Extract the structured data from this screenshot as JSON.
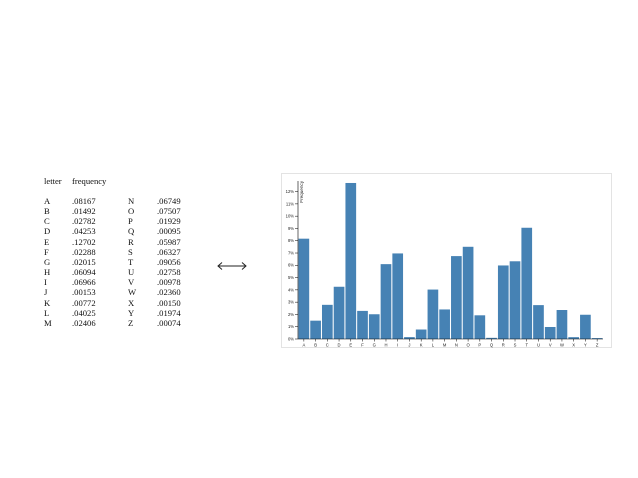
{
  "table": {
    "header_letter": "letter",
    "header_frequency": "frequency",
    "left_column": [
      {
        "letter": "A",
        "frequency": ".08167"
      },
      {
        "letter": "B",
        "frequency": ".01492"
      },
      {
        "letter": "C",
        "frequency": ".02782"
      },
      {
        "letter": "D",
        "frequency": ".04253"
      },
      {
        "letter": "E",
        "frequency": ".12702"
      },
      {
        "letter": "F",
        "frequency": ".02288"
      },
      {
        "letter": "G",
        "frequency": ".02015"
      },
      {
        "letter": "H",
        "frequency": ".06094"
      },
      {
        "letter": "I",
        "frequency": ".06966"
      },
      {
        "letter": "J",
        "frequency": ".00153"
      },
      {
        "letter": "K",
        "frequency": ".00772"
      },
      {
        "letter": "L",
        "frequency": ".04025"
      },
      {
        "letter": "M",
        "frequency": ".02406"
      }
    ],
    "right_column": [
      {
        "letter": "N",
        "frequency": ".06749"
      },
      {
        "letter": "O",
        "frequency": ".07507"
      },
      {
        "letter": "P",
        "frequency": ".01929"
      },
      {
        "letter": "Q",
        "frequency": ".00095"
      },
      {
        "letter": "R",
        "frequency": ".05987"
      },
      {
        "letter": "S",
        "frequency": ".06327"
      },
      {
        "letter": "T",
        "frequency": ".09056"
      },
      {
        "letter": "U",
        "frequency": ".02758"
      },
      {
        "letter": "V",
        "frequency": ".00978"
      },
      {
        "letter": "W",
        "frequency": ".02360"
      },
      {
        "letter": "X",
        "frequency": ".00150"
      },
      {
        "letter": "Y",
        "frequency": ".01974"
      },
      {
        "letter": "Z",
        "frequency": ".00074"
      }
    ]
  },
  "arrow_symbol": "⟷",
  "colors": {
    "bar": "#4682b4",
    "axis": "#000000"
  },
  "chart_data": {
    "type": "bar",
    "title": "",
    "xlabel": "",
    "ylabel": "Frequency",
    "categories": [
      "A",
      "B",
      "C",
      "D",
      "E",
      "F",
      "G",
      "H",
      "I",
      "J",
      "K",
      "L",
      "M",
      "N",
      "O",
      "P",
      "Q",
      "R",
      "S",
      "T",
      "U",
      "V",
      "W",
      "X",
      "Y",
      "Z"
    ],
    "values": [
      0.08167,
      0.01492,
      0.02782,
      0.04253,
      0.12702,
      0.02288,
      0.02015,
      0.06094,
      0.06966,
      0.00153,
      0.00772,
      0.04025,
      0.02406,
      0.06749,
      0.07507,
      0.01929,
      0.00095,
      0.05987,
      0.06327,
      0.09056,
      0.02758,
      0.00978,
      0.0236,
      0.0015,
      0.01974,
      0.00074
    ],
    "ylim": [
      0,
      0.127
    ],
    "yticks": [
      0,
      0.01,
      0.02,
      0.03,
      0.04,
      0.05,
      0.06,
      0.07,
      0.08,
      0.09,
      0.1,
      0.11,
      0.12
    ],
    "ytick_labels": [
      "0%",
      "1%",
      "2%",
      "3%",
      "4%",
      "5%",
      "6%",
      "7%",
      "8%",
      "9%",
      "10%",
      "11%",
      "12%"
    ],
    "grid": false,
    "legend": "none"
  }
}
